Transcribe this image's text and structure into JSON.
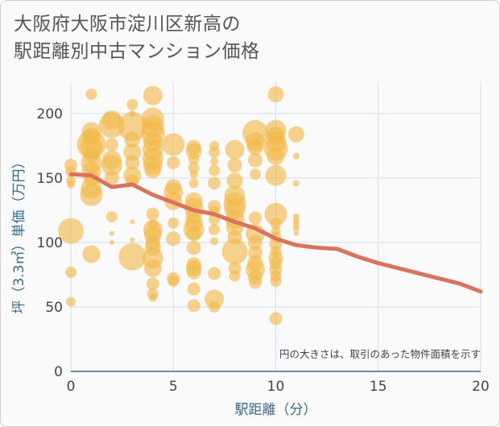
{
  "title_line1": "大阪府大阪市淀川区新高の",
  "title_line2": "駅距離別中古マンション価格",
  "chart_data": {
    "type": "scatter",
    "title": "大阪府大阪市淀川区新高の駅距離別中古マンション価格",
    "xlabel": "駅距離（分）",
    "ylabel": "坪（3.3㎡）単価（万円）",
    "xlim": [
      0,
      20
    ],
    "ylim": [
      0,
      225
    ],
    "xticks": [
      "0",
      "5",
      "10",
      "15",
      "20"
    ],
    "yticks": [
      "0",
      "50",
      "100",
      "150",
      "200"
    ],
    "xtick_values": [
      0,
      5,
      10,
      15,
      20
    ],
    "ytick_values": [
      0,
      50,
      100,
      150,
      200
    ],
    "grid": true,
    "note": "円の大きさは、取引のあった物件面積を示す",
    "colors": {
      "bubble": "#f2b84b",
      "trend": "#d9735b",
      "grid": "#d4dfe8",
      "axis": "#3a6a8a"
    },
    "trend": {
      "x": [
        0,
        1,
        2,
        3,
        4,
        5,
        6,
        7,
        8,
        9,
        10,
        11,
        12,
        13,
        14,
        15,
        16,
        17,
        18,
        19,
        20
      ],
      "y": [
        153,
        152,
        143,
        145,
        137,
        131,
        125,
        122,
        116,
        111,
        103,
        98,
        96,
        95,
        89,
        84,
        80,
        76,
        72,
        68,
        62
      ]
    },
    "bubbles": [
      {
        "x": 0,
        "y": 160,
        "s": 8
      },
      {
        "x": 0,
        "y": 155,
        "s": 7
      },
      {
        "x": 0,
        "y": 148,
        "s": 6
      },
      {
        "x": 0,
        "y": 145,
        "s": 5
      },
      {
        "x": 0,
        "y": 109,
        "s": 16
      },
      {
        "x": 0,
        "y": 77,
        "s": 7
      },
      {
        "x": 0,
        "y": 54,
        "s": 6
      },
      {
        "x": 1,
        "y": 215,
        "s": 7
      },
      {
        "x": 1,
        "y": 186,
        "s": 12
      },
      {
        "x": 1,
        "y": 182,
        "s": 11
      },
      {
        "x": 1,
        "y": 176,
        "s": 18
      },
      {
        "x": 1,
        "y": 174,
        "s": 14
      },
      {
        "x": 1,
        "y": 168,
        "s": 10
      },
      {
        "x": 1,
        "y": 162,
        "s": 13
      },
      {
        "x": 1,
        "y": 155,
        "s": 12
      },
      {
        "x": 1,
        "y": 150,
        "s": 10
      },
      {
        "x": 1,
        "y": 142,
        "s": 13
      },
      {
        "x": 1,
        "y": 137,
        "s": 14
      },
      {
        "x": 1,
        "y": 91,
        "s": 11
      },
      {
        "x": 2,
        "y": 195,
        "s": 12
      },
      {
        "x": 2,
        "y": 191,
        "s": 16
      },
      {
        "x": 2,
        "y": 176,
        "s": 8
      },
      {
        "x": 2,
        "y": 164,
        "s": 12
      },
      {
        "x": 2,
        "y": 160,
        "s": 13
      },
      {
        "x": 2,
        "y": 150,
        "s": 9
      },
      {
        "x": 2,
        "y": 120,
        "s": 7
      },
      {
        "x": 2,
        "y": 107,
        "s": 3
      },
      {
        "x": 2,
        "y": 100,
        "s": 3
      },
      {
        "x": 3,
        "y": 207,
        "s": 7
      },
      {
        "x": 3,
        "y": 200,
        "s": 4
      },
      {
        "x": 3,
        "y": 190,
        "s": 18
      },
      {
        "x": 3,
        "y": 180,
        "s": 10
      },
      {
        "x": 3,
        "y": 170,
        "s": 11
      },
      {
        "x": 3,
        "y": 162,
        "s": 9
      },
      {
        "x": 3,
        "y": 152,
        "s": 11
      },
      {
        "x": 3,
        "y": 148,
        "s": 8
      },
      {
        "x": 3,
        "y": 116,
        "s": 3
      },
      {
        "x": 3,
        "y": 102,
        "s": 3
      },
      {
        "x": 3,
        "y": 89,
        "s": 17
      },
      {
        "x": 4,
        "y": 214,
        "s": 12
      },
      {
        "x": 4,
        "y": 196,
        "s": 14
      },
      {
        "x": 4,
        "y": 190,
        "s": 14
      },
      {
        "x": 4,
        "y": 185,
        "s": 15
      },
      {
        "x": 4,
        "y": 178,
        "s": 12
      },
      {
        "x": 4,
        "y": 172,
        "s": 13
      },
      {
        "x": 4,
        "y": 165,
        "s": 13
      },
      {
        "x": 4,
        "y": 160,
        "s": 12
      },
      {
        "x": 4,
        "y": 156,
        "s": 10
      },
      {
        "x": 4,
        "y": 122,
        "s": 8
      },
      {
        "x": 4,
        "y": 114,
        "s": 6
      },
      {
        "x": 4,
        "y": 110,
        "s": 12
      },
      {
        "x": 4,
        "y": 106,
        "s": 11
      },
      {
        "x": 4,
        "y": 100,
        "s": 9
      },
      {
        "x": 4,
        "y": 96,
        "s": 10
      },
      {
        "x": 4,
        "y": 88,
        "s": 13
      },
      {
        "x": 4,
        "y": 80,
        "s": 11
      },
      {
        "x": 4,
        "y": 68,
        "s": 8
      },
      {
        "x": 4,
        "y": 60,
        "s": 7
      },
      {
        "x": 4,
        "y": 57,
        "s": 5
      },
      {
        "x": 5,
        "y": 176,
        "s": 14
      },
      {
        "x": 5,
        "y": 162,
        "s": 8
      },
      {
        "x": 5,
        "y": 143,
        "s": 10
      },
      {
        "x": 5,
        "y": 139,
        "s": 12
      },
      {
        "x": 5,
        "y": 132,
        "s": 11
      },
      {
        "x": 5,
        "y": 115,
        "s": 7
      },
      {
        "x": 5,
        "y": 103,
        "s": 9
      },
      {
        "x": 5,
        "y": 72,
        "s": 8
      },
      {
        "x": 5,
        "y": 70,
        "s": 7
      },
      {
        "x": 6,
        "y": 174,
        "s": 9
      },
      {
        "x": 6,
        "y": 171,
        "s": 10
      },
      {
        "x": 6,
        "y": 165,
        "s": 7
      },
      {
        "x": 6,
        "y": 158,
        "s": 7
      },
      {
        "x": 6,
        "y": 153,
        "s": 5
      },
      {
        "x": 6,
        "y": 146,
        "s": 6
      },
      {
        "x": 6,
        "y": 132,
        "s": 11
      },
      {
        "x": 6,
        "y": 127,
        "s": 12
      },
      {
        "x": 6,
        "y": 121,
        "s": 10
      },
      {
        "x": 6,
        "y": 115,
        "s": 11
      },
      {
        "x": 6,
        "y": 110,
        "s": 13
      },
      {
        "x": 6,
        "y": 107,
        "s": 9
      },
      {
        "x": 6,
        "y": 96,
        "s": 9
      },
      {
        "x": 6,
        "y": 83,
        "s": 9
      },
      {
        "x": 6,
        "y": 80,
        "s": 10
      },
      {
        "x": 6,
        "y": 77,
        "s": 9
      },
      {
        "x": 6,
        "y": 64,
        "s": 8
      },
      {
        "x": 6,
        "y": 51,
        "s": 8
      },
      {
        "x": 7,
        "y": 175,
        "s": 6
      },
      {
        "x": 7,
        "y": 170,
        "s": 7
      },
      {
        "x": 7,
        "y": 163,
        "s": 5
      },
      {
        "x": 7,
        "y": 156,
        "s": 7
      },
      {
        "x": 7,
        "y": 146,
        "s": 8
      },
      {
        "x": 7,
        "y": 128,
        "s": 8
      },
      {
        "x": 7,
        "y": 124,
        "s": 7
      },
      {
        "x": 7,
        "y": 118,
        "s": 7
      },
      {
        "x": 7,
        "y": 110,
        "s": 7
      },
      {
        "x": 7,
        "y": 101,
        "s": 5
      },
      {
        "x": 7,
        "y": 76,
        "s": 8
      },
      {
        "x": 7,
        "y": 56,
        "s": 12
      },
      {
        "x": 7,
        "y": 50,
        "s": 7
      },
      {
        "x": 8,
        "y": 172,
        "s": 12
      },
      {
        "x": 8,
        "y": 160,
        "s": 9
      },
      {
        "x": 8,
        "y": 148,
        "s": 10
      },
      {
        "x": 8,
        "y": 136,
        "s": 13
      },
      {
        "x": 8,
        "y": 130,
        "s": 14
      },
      {
        "x": 8,
        "y": 126,
        "s": 13
      },
      {
        "x": 8,
        "y": 118,
        "s": 12
      },
      {
        "x": 8,
        "y": 112,
        "s": 11
      },
      {
        "x": 8,
        "y": 104,
        "s": 9
      },
      {
        "x": 8,
        "y": 93,
        "s": 16
      },
      {
        "x": 8,
        "y": 80,
        "s": 8
      },
      {
        "x": 8,
        "y": 74,
        "s": 7
      },
      {
        "x": 9,
        "y": 185,
        "s": 16
      },
      {
        "x": 9,
        "y": 178,
        "s": 12
      },
      {
        "x": 9,
        "y": 174,
        "s": 10
      },
      {
        "x": 9,
        "y": 164,
        "s": 9
      },
      {
        "x": 9,
        "y": 153,
        "s": 7
      },
      {
        "x": 9,
        "y": 119,
        "s": 8
      },
      {
        "x": 9,
        "y": 107,
        "s": 12
      },
      {
        "x": 9,
        "y": 100,
        "s": 9
      },
      {
        "x": 9,
        "y": 92,
        "s": 9
      },
      {
        "x": 9,
        "y": 84,
        "s": 10
      },
      {
        "x": 9,
        "y": 79,
        "s": 12
      },
      {
        "x": 9,
        "y": 73,
        "s": 9
      },
      {
        "x": 9,
        "y": 69,
        "s": 8
      },
      {
        "x": 10,
        "y": 215,
        "s": 10
      },
      {
        "x": 10,
        "y": 187,
        "s": 13
      },
      {
        "x": 10,
        "y": 183,
        "s": 11
      },
      {
        "x": 10,
        "y": 178,
        "s": 13
      },
      {
        "x": 10,
        "y": 173,
        "s": 15
      },
      {
        "x": 10,
        "y": 167,
        "s": 11
      },
      {
        "x": 10,
        "y": 152,
        "s": 13
      },
      {
        "x": 10,
        "y": 122,
        "s": 14
      },
      {
        "x": 10,
        "y": 115,
        "s": 7
      },
      {
        "x": 10,
        "y": 109,
        "s": 6
      },
      {
        "x": 10,
        "y": 104,
        "s": 7
      },
      {
        "x": 10,
        "y": 99,
        "s": 8
      },
      {
        "x": 10,
        "y": 93,
        "s": 7
      },
      {
        "x": 10,
        "y": 88,
        "s": 9
      },
      {
        "x": 10,
        "y": 84,
        "s": 8
      },
      {
        "x": 10,
        "y": 79,
        "s": 8
      },
      {
        "x": 10,
        "y": 74,
        "s": 7
      },
      {
        "x": 10,
        "y": 70,
        "s": 7
      },
      {
        "x": 10,
        "y": 41,
        "s": 8
      },
      {
        "x": 11,
        "y": 184,
        "s": 10
      },
      {
        "x": 11,
        "y": 167,
        "s": 4
      },
      {
        "x": 11,
        "y": 146,
        "s": 4
      },
      {
        "x": 11,
        "y": 120,
        "s": 4
      },
      {
        "x": 11,
        "y": 117,
        "s": 4
      },
      {
        "x": 11,
        "y": 114,
        "s": 4
      },
      {
        "x": 11,
        "y": 111,
        "s": 4
      },
      {
        "x": 11,
        "y": 107,
        "s": 3
      }
    ]
  }
}
